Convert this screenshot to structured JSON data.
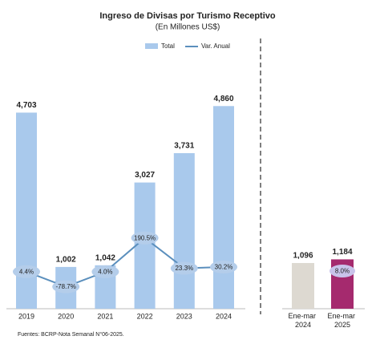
{
  "chart_data": [
    {
      "type": "bar",
      "title": "Ingreso de Divisas por Turismo Receptivo",
      "subtitle": "(En Millones US$)",
      "source": "Fuentes: BCRP-Nota Semanal N°06-2025.",
      "categories": [
        "2019",
        "2020",
        "2021",
        "2022",
        "2023",
        "2024"
      ],
      "series": [
        {
          "name": "Total",
          "color": "#a9c9ec",
          "values": [
            4703,
            1002,
            1042,
            3027,
            3731,
            4860
          ],
          "value_labels": [
            "4,703",
            "1,002",
            "1,042",
            "3,027",
            "3,731",
            "4,860"
          ]
        },
        {
          "name": "Var. Anual",
          "color": "#5b8fbd",
          "axis": "y2",
          "values": [
            4.4,
            -78.7,
            4.0,
            190.5,
            23.3,
            30.2
          ],
          "value_labels": [
            "4.4%",
            "-78.7%",
            "4.0%",
            "190.5%",
            "23.3%",
            "30.2%"
          ]
        }
      ],
      "ylim": [
        0,
        5000
      ],
      "y2lim": [
        -200,
        950
      ]
    },
    {
      "type": "bar",
      "categories": [
        "Ene-mar 2024",
        "Ene-mar 2025"
      ],
      "series": [
        {
          "values": [
            1096,
            1184
          ],
          "value_labels": [
            "1,096",
            "1,184"
          ],
          "colors": [
            "#ddd9d1",
            "#a52a6e"
          ]
        }
      ],
      "growth": 8.0,
      "growth_label": "8.0%",
      "ylim": [
        0,
        5000
      ],
      "y2lim": [
        -200,
        950
      ]
    }
  ]
}
